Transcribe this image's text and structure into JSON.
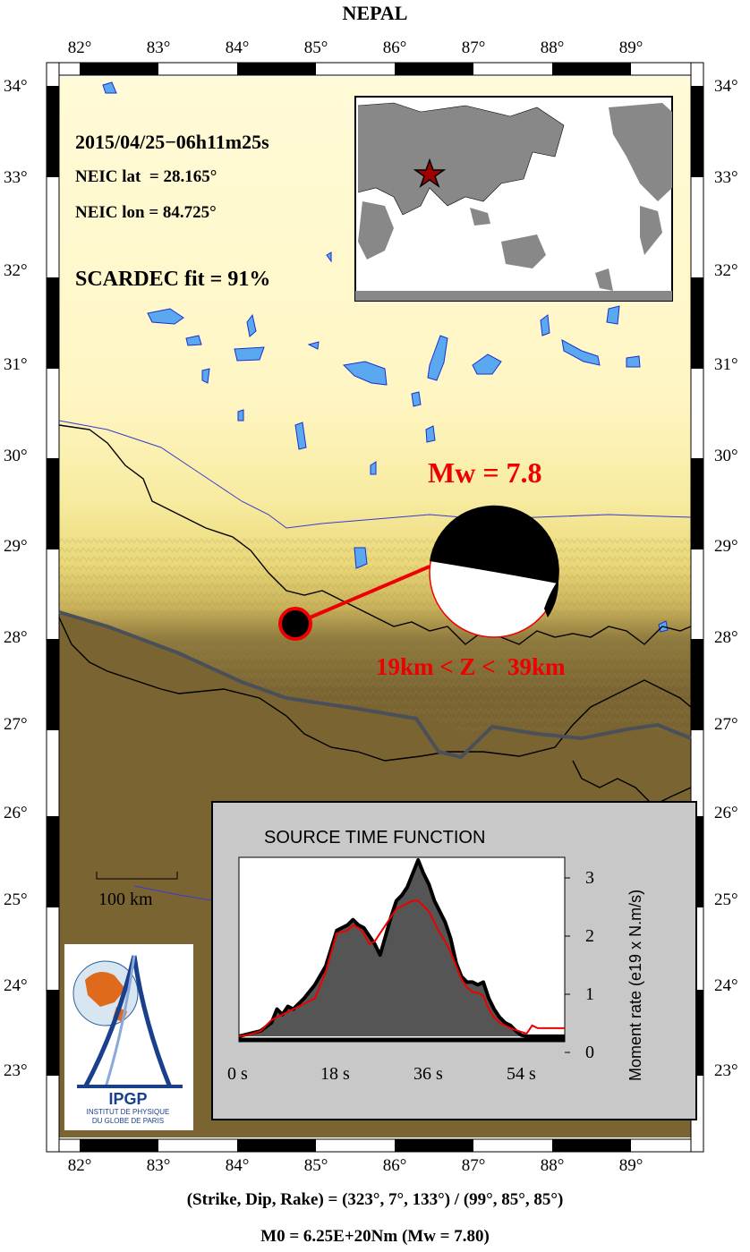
{
  "map": {
    "title": "NEPAL",
    "lon_ticks": [
      "82°",
      "83°",
      "84°",
      "85°",
      "86°",
      "87°",
      "88°",
      "89°"
    ],
    "lat_ticks": [
      "34°",
      "33°",
      "32°",
      "31°",
      "30°",
      "29°",
      "28°",
      "27°",
      "26°",
      "25°",
      "24°",
      "23°"
    ],
    "scale_label": "100 km",
    "colors": {
      "lowland": "#7a6532",
      "highland": "#fff8c8",
      "water": "#5aa9f0",
      "border": "#000000",
      "fault": "#555555",
      "accent": "#ee0000"
    }
  },
  "event": {
    "datetime": "2015/04/25−06h11m25s",
    "lat_label": "NEIC lat  = 28.165°",
    "lon_label": "NEIC lon = 84.725°",
    "fit_label": "SCARDEC fit = 91%",
    "magnitude_label": "Mw = 7.8",
    "depth_label": "19km < Z <  39km"
  },
  "inset": {
    "star": "epicenter-star-icon"
  },
  "stf": {
    "title": "SOURCE TIME FUNCTION",
    "ylabel": "Moment rate (e19 x N.m/s)",
    "x_ticks": [
      "0 s",
      "18 s",
      "36 s",
      "54 s"
    ],
    "y_ticks": [
      "3",
      "2",
      "1",
      "0"
    ]
  },
  "chart_data": {
    "type": "area",
    "title": "SOURCE TIME FUNCTION",
    "xlabel": "",
    "ylabel": "Moment rate (e19 x N.m/s)",
    "xlim": [
      0,
      60
    ],
    "ylim": [
      -0.1,
      3.3
    ],
    "x_ticks": [
      "0 s",
      "18 s",
      "36 s",
      "54 s"
    ],
    "series": [
      {
        "color": "#000000",
        "x": [
          0,
          2,
          4,
          6,
          7,
          8,
          9,
          10,
          12,
          14,
          16,
          18,
          20,
          21,
          22,
          23,
          24,
          25,
          26,
          27,
          28,
          29,
          30,
          31,
          32,
          33,
          34,
          35,
          36,
          37,
          38,
          39,
          40,
          41,
          42,
          43,
          44,
          45,
          46,
          47,
          48,
          49,
          50,
          51,
          52,
          53,
          54,
          55,
          57,
          60
        ],
        "values": [
          0,
          0.05,
          0.1,
          0.25,
          0.5,
          0.4,
          0.55,
          0.5,
          0.7,
          0.95,
          1.3,
          1.95,
          2.05,
          2.15,
          2.05,
          2.0,
          1.85,
          1.7,
          1.5,
          1.85,
          2.2,
          2.5,
          2.6,
          2.75,
          3.0,
          3.25,
          3.0,
          2.8,
          2.5,
          2.3,
          2.1,
          1.8,
          1.35,
          1.1,
          1.0,
          1.0,
          0.95,
          1.0,
          0.7,
          0.5,
          0.35,
          0.25,
          0.2,
          0.1,
          0.02,
          0,
          0,
          0,
          0,
          0
        ]
      },
      {
        "color": "#ee0000",
        "x": [
          0,
          2,
          4,
          6,
          8,
          10,
          12,
          14,
          16,
          18,
          20,
          21,
          22,
          23,
          24,
          25,
          26,
          27,
          28,
          29,
          30,
          31,
          32,
          33,
          34,
          35,
          36,
          37,
          38,
          39,
          40,
          41,
          42,
          43,
          44,
          45,
          46,
          47,
          48,
          49,
          50,
          52,
          53,
          54,
          55,
          57,
          60
        ],
        "values": [
          0,
          0.03,
          0.1,
          0.3,
          0.4,
          0.5,
          0.6,
          0.7,
          1.2,
          1.9,
          1.95,
          2.05,
          2.0,
          1.9,
          1.7,
          1.75,
          1.9,
          2.05,
          2.2,
          2.35,
          2.4,
          2.45,
          2.5,
          2.5,
          2.4,
          2.3,
          2.1,
          1.9,
          1.75,
          1.55,
          1.3,
          1.05,
          0.9,
          0.82,
          0.8,
          0.75,
          0.5,
          0.35,
          0.25,
          0.2,
          0.15,
          0.08,
          0.05,
          0.2,
          0.15,
          0.15,
          0.15
        ]
      }
    ]
  },
  "focal": {
    "strike_dip_rake": "(Strike, Dip, Rake) = (323°, 7°, 133°) / (99°, 85°, 85°)",
    "moment": "M0 = 6.25E+20Nm  (Mw = 7.80)"
  },
  "logo": {
    "name": "IPGP",
    "subtitle1": "INSTITUT DE PHYSIQUE",
    "subtitle2": "DU GLOBE DE PARIS"
  }
}
